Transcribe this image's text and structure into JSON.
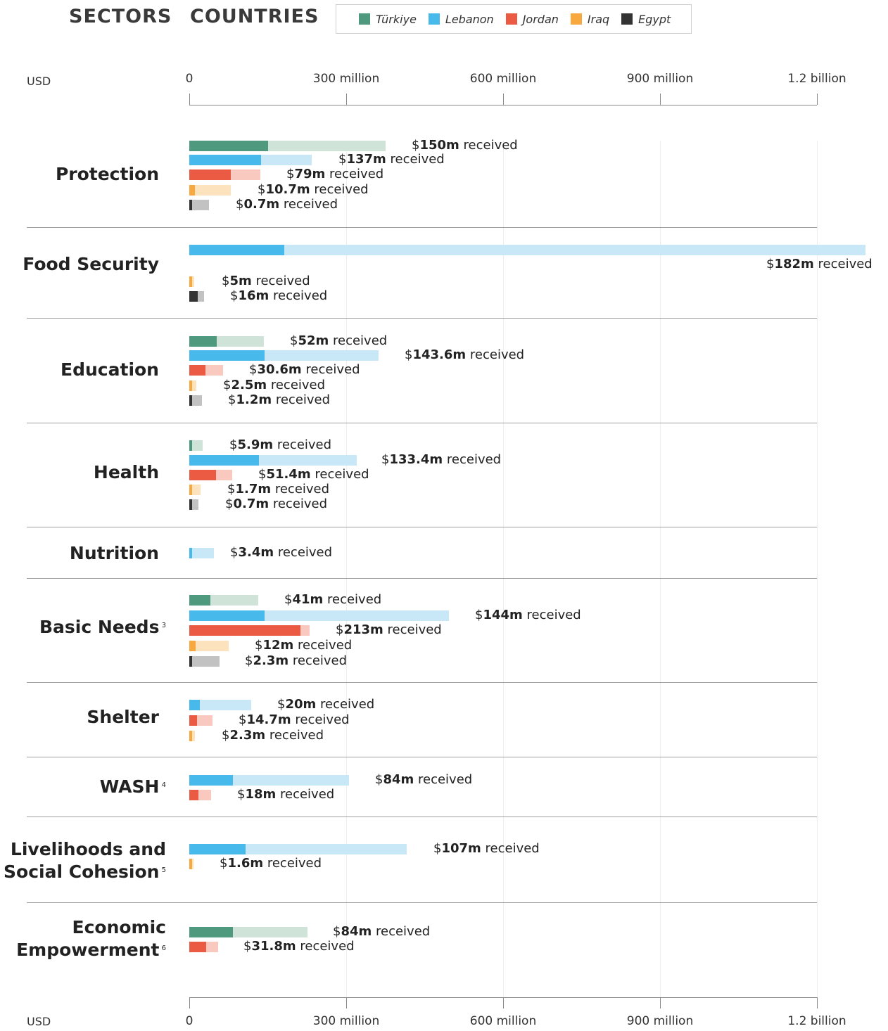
{
  "tabs": {
    "sectors": "SECTORS",
    "countries": "COUNTRIES"
  },
  "legend": [
    {
      "name": "Türkiye",
      "color": "#4f9a7e",
      "light": "#cfe3d8"
    },
    {
      "name": "Lebanon",
      "color": "#47b9ea",
      "light": "#c8e8f7"
    },
    {
      "name": "Jordan",
      "color": "#eb5b43",
      "light": "#f9c9c0"
    },
    {
      "name": "Iraq",
      "color": "#f7a83e",
      "light": "#fde3bd"
    },
    {
      "name": "Egypt",
      "color": "#333333",
      "light": "#c2c2c2"
    }
  ],
  "chart_data": {
    "type": "bar",
    "orientation": "horizontal",
    "unit_label": "USD",
    "xlim": [
      0,
      1200000000
    ],
    "ticks": [
      {
        "value": 0,
        "label": "0"
      },
      {
        "value": 300000000,
        "label": "300 million"
      },
      {
        "value": 600000000,
        "label": "600 million"
      },
      {
        "value": 900000000,
        "label": "900 million"
      },
      {
        "value": 1200000000,
        "label": "1.2 billion"
      }
    ],
    "label_prefix": "$",
    "label_suffix": "received",
    "sectors": [
      {
        "name": "Protection",
        "note": "",
        "bars": [
          {
            "country": "Türkiye",
            "requirement_m": 376,
            "received_m": 150,
            "received_label": "150m"
          },
          {
            "country": "Lebanon",
            "requirement_m": 234,
            "received_m": 137,
            "received_label": "137m"
          },
          {
            "country": "Jordan",
            "requirement_m": 136,
            "received_m": 79,
            "received_label": "79m"
          },
          {
            "country": "Iraq",
            "requirement_m": 79,
            "received_m": 10.7,
            "received_label": "10.7m"
          },
          {
            "country": "Egypt",
            "requirement_m": 38,
            "received_m": 0.7,
            "received_label": "0.7m"
          }
        ]
      },
      {
        "name": "Food Security",
        "note": "",
        "bars": [
          {
            "country": "Lebanon",
            "requirement_m": 1293,
            "received_m": 182,
            "received_label": "182m"
          },
          {
            "country": "Iraq",
            "requirement_m": 10,
            "received_m": 5,
            "received_label": "5m"
          },
          {
            "country": "Egypt",
            "requirement_m": 28,
            "received_m": 16,
            "received_label": "16m"
          }
        ]
      },
      {
        "name": "Education",
        "note": "",
        "bars": [
          {
            "country": "Türkiye",
            "requirement_m": 142,
            "received_m": 52,
            "received_label": "52m"
          },
          {
            "country": "Lebanon",
            "requirement_m": 362,
            "received_m": 143.6,
            "received_label": "143.6m"
          },
          {
            "country": "Jordan",
            "requirement_m": 64,
            "received_m": 30.6,
            "received_label": "30.6m"
          },
          {
            "country": "Iraq",
            "requirement_m": 14,
            "received_m": 2.5,
            "received_label": "2.5m"
          },
          {
            "country": "Egypt",
            "requirement_m": 24,
            "received_m": 1.2,
            "received_label": "1.2m"
          }
        ]
      },
      {
        "name": "Health",
        "note": "",
        "bars": [
          {
            "country": "Türkiye",
            "requirement_m": 26,
            "received_m": 5.9,
            "received_label": "5.9m"
          },
          {
            "country": "Lebanon",
            "requirement_m": 320,
            "received_m": 133.4,
            "received_label": "133.4m"
          },
          {
            "country": "Jordan",
            "requirement_m": 82,
            "received_m": 51.4,
            "received_label": "51.4m"
          },
          {
            "country": "Iraq",
            "requirement_m": 22,
            "received_m": 1.7,
            "received_label": "1.7m"
          },
          {
            "country": "Egypt",
            "requirement_m": 17,
            "received_m": 0.7,
            "received_label": "0.7m"
          }
        ]
      },
      {
        "name": "Nutrition",
        "note": "",
        "bars": [
          {
            "country": "Lebanon",
            "requirement_m": 47,
            "received_m": 3.4,
            "received_label": "3.4m"
          }
        ]
      },
      {
        "name": "Basic Needs",
        "note": "3",
        "bars": [
          {
            "country": "Türkiye",
            "requirement_m": 132,
            "received_m": 41,
            "received_label": "41m"
          },
          {
            "country": "Lebanon",
            "requirement_m": 497,
            "received_m": 144,
            "received_label": "144m"
          },
          {
            "country": "Jordan",
            "requirement_m": 230,
            "received_m": 213,
            "received_label": "213m"
          },
          {
            "country": "Iraq",
            "requirement_m": 76,
            "received_m": 12,
            "received_label": "12m"
          },
          {
            "country": "Egypt",
            "requirement_m": 58,
            "received_m": 2.3,
            "received_label": "2.3m"
          }
        ]
      },
      {
        "name": "Shelter",
        "note": "",
        "bars": [
          {
            "country": "Lebanon",
            "requirement_m": 119,
            "received_m": 20,
            "received_label": "20m"
          },
          {
            "country": "Jordan",
            "requirement_m": 45,
            "received_m": 14.7,
            "received_label": "14.7m"
          },
          {
            "country": "Iraq",
            "requirement_m": 11,
            "received_m": 2.3,
            "received_label": "2.3m"
          }
        ]
      },
      {
        "name": "WASH",
        "note": "4",
        "bars": [
          {
            "country": "Lebanon",
            "requirement_m": 305,
            "received_m": 84,
            "received_label": "84m"
          },
          {
            "country": "Jordan",
            "requirement_m": 42,
            "received_m": 18,
            "received_label": "18m"
          }
        ]
      },
      {
        "name": "Livelihoods and Social Cohesion",
        "note": "5",
        "bars": [
          {
            "country": "Lebanon",
            "requirement_m": 416,
            "received_m": 107,
            "received_label": "107m"
          },
          {
            "country": "Iraq",
            "requirement_m": 8,
            "received_m": 1.6,
            "received_label": "1.6m"
          }
        ]
      },
      {
        "name": "Economic Empowerment",
        "note": "6",
        "bars": [
          {
            "country": "Türkiye",
            "requirement_m": 226,
            "received_m": 84,
            "received_label": "84m"
          },
          {
            "country": "Jordan",
            "requirement_m": 55,
            "received_m": 31.8,
            "received_label": "31.8m"
          }
        ]
      }
    ]
  }
}
